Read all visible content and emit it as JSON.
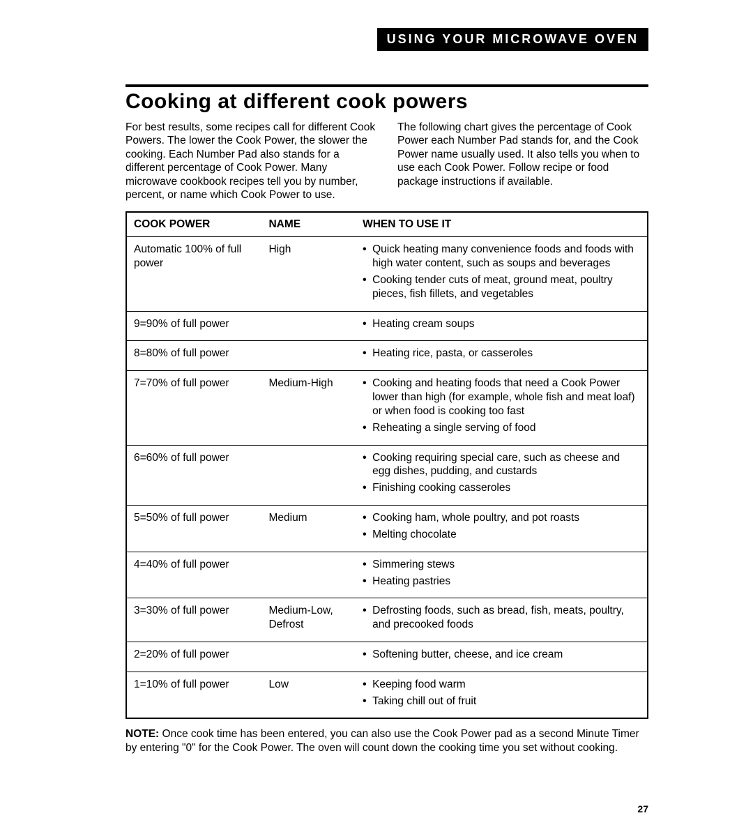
{
  "header": {
    "label": "USING YOUR MICROWAVE OVEN"
  },
  "section": {
    "title": "Cooking at different cook powers",
    "intro_left": "For best results, some recipes call for different Cook Powers. The lower the Cook Power, the slower the cooking. Each Number Pad also stands for a different percentage of Cook Power. Many microwave cookbook recipes tell you by number, percent, or name which Cook Power to use.",
    "intro_right": "The following chart gives the percentage of Cook Power each Number Pad stands for, and the Cook Power name usually used. It also tells you when to use each Cook Power. Follow recipe or food package instructions if available."
  },
  "table": {
    "headers": {
      "power": "COOK POWER",
      "name": "NAME",
      "use": "WHEN TO USE IT"
    },
    "rows": [
      {
        "power": "Automatic 100% of full power",
        "name": "High",
        "uses": [
          "Quick heating many convenience foods and foods with high water content, such as soups and beverages",
          "Cooking tender cuts of meat, ground meat, poultry pieces, fish fillets, and vegetables"
        ]
      },
      {
        "power": "9=90% of full power",
        "name": "",
        "uses": [
          "Heating cream soups"
        ]
      },
      {
        "power": "8=80% of full power",
        "name": "",
        "uses": [
          "Heating rice, pasta, or casseroles"
        ]
      },
      {
        "power": "7=70% of full power",
        "name": "Medium-High",
        "uses": [
          "Cooking and heating foods that need a Cook Power lower than high (for example, whole fish and meat loaf) or when food is cooking too fast",
          "Reheating a single serving of food"
        ]
      },
      {
        "power": "6=60% of full power",
        "name": "",
        "uses": [
          "Cooking requiring special care, such as cheese and egg dishes, pudding, and custards",
          "Finishing cooking casseroles"
        ]
      },
      {
        "power": "5=50% of full power",
        "name": "Medium",
        "uses": [
          "Cooking ham, whole poultry, and pot roasts",
          "Melting chocolate"
        ]
      },
      {
        "power": "4=40% of full power",
        "name": "",
        "uses": [
          "Simmering stews",
          "Heating pastries"
        ]
      },
      {
        "power": "3=30% of full power",
        "name": "Medium-Low, Defrost",
        "uses": [
          "Defrosting foods, such as bread, fish, meats, poultry, and precooked foods"
        ]
      },
      {
        "power": "2=20% of full power",
        "name": "",
        "uses": [
          "Softening butter, cheese, and ice cream"
        ]
      },
      {
        "power": "1=10% of full power",
        "name": "Low",
        "uses": [
          "Keeping food warm",
          "Taking chill out of fruit"
        ]
      }
    ]
  },
  "note": {
    "label": "NOTE:",
    "text": "Once cook time has been entered, you can also use the Cook Power pad as a second Minute Timer by entering \"0\" for the Cook Power. The oven will count down the cooking time you set without cooking."
  },
  "page_number": "27"
}
